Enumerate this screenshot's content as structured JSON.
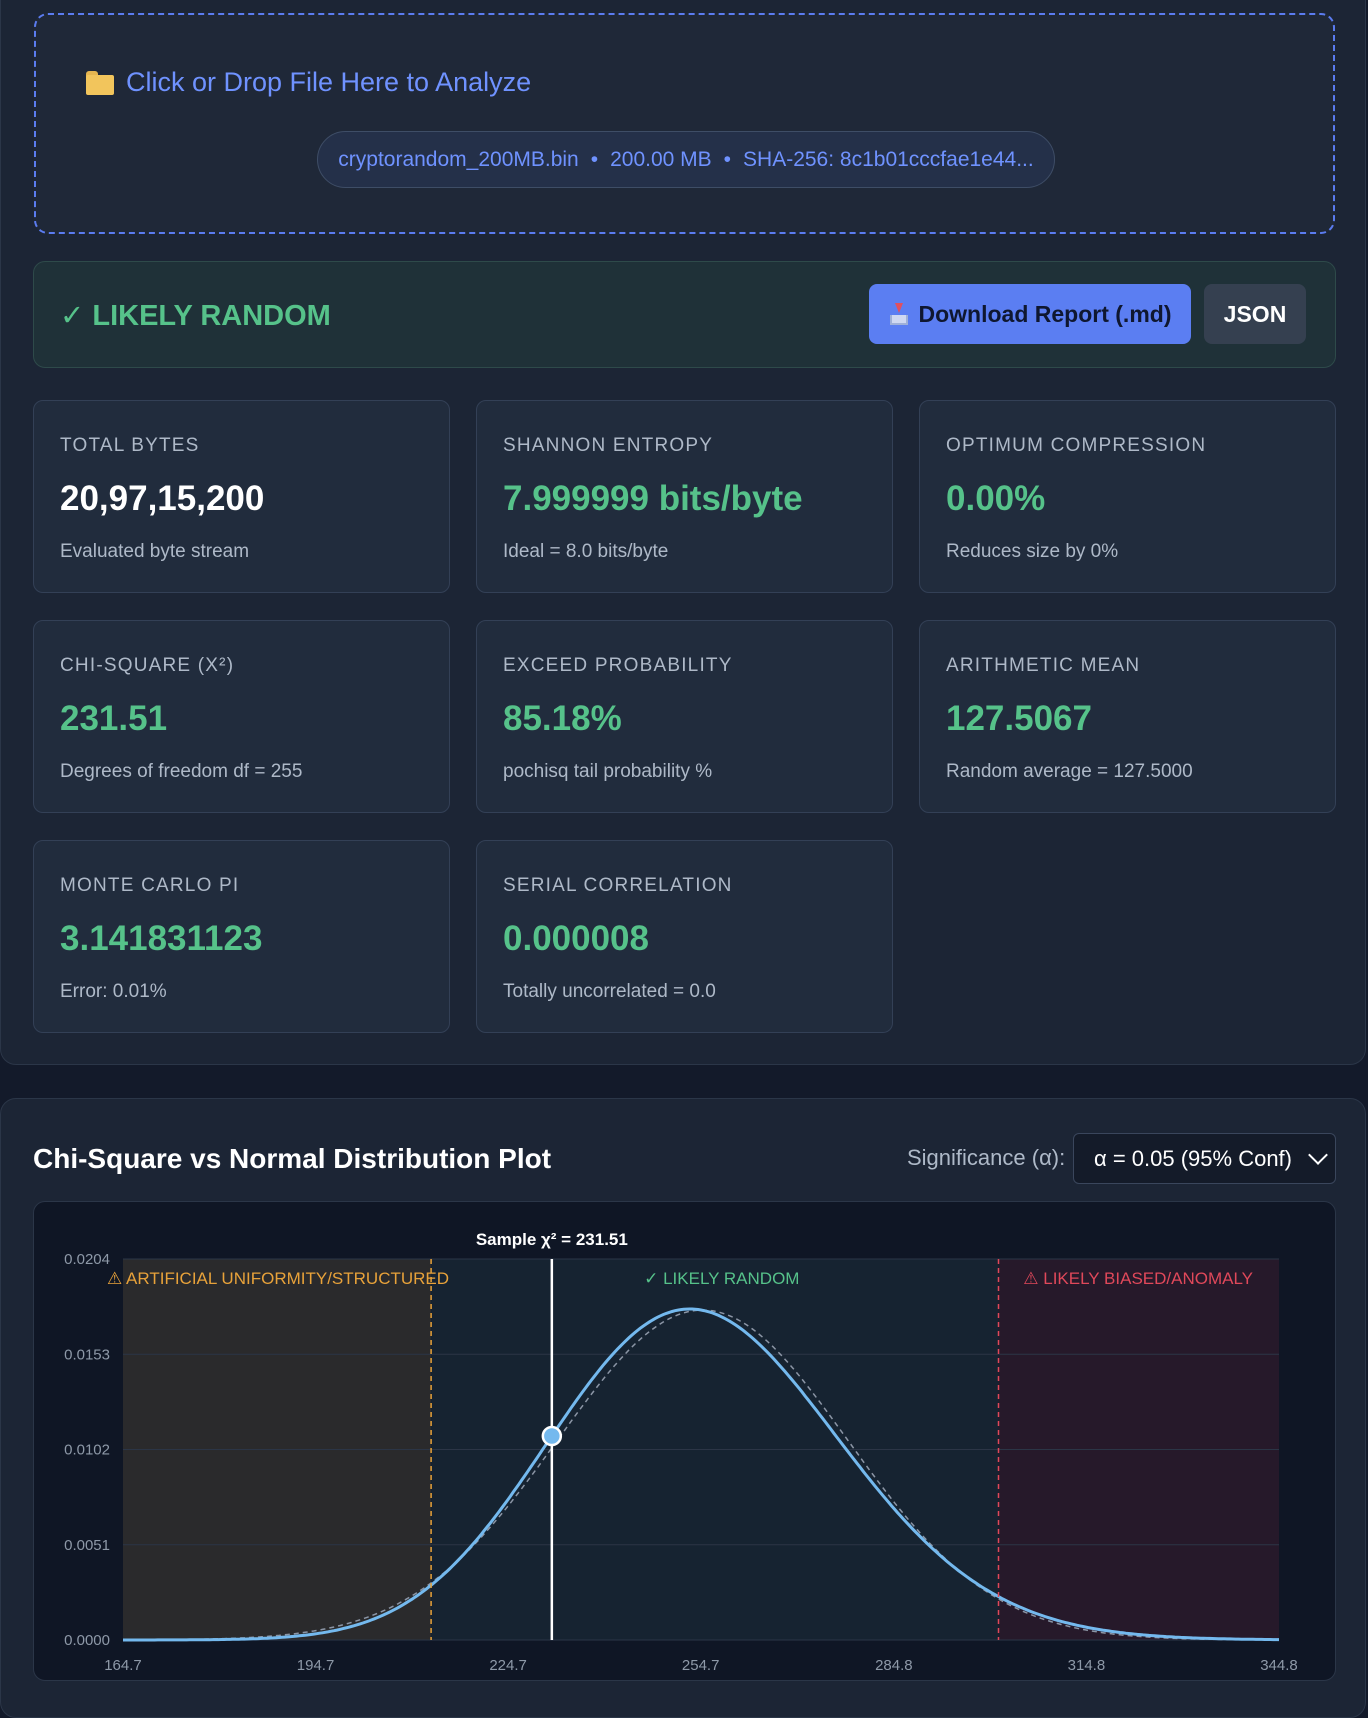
{
  "dropzone": {
    "title": "Click or Drop File Here to Analyze",
    "icon": "folder-icon",
    "file_name": "cryptorandom_200MB.bin",
    "file_size": "200.00 MB",
    "file_hash": "SHA-256: 8c1b01cccfae1e44..."
  },
  "status": {
    "verdict": "✓ LIKELY RANDOM",
    "download_label": "Download Report (.md)",
    "json_label": "JSON"
  },
  "cards": {
    "total_bytes": {
      "label": "TOTAL BYTES",
      "value": "20,97,15,200",
      "sub": "Evaluated byte stream"
    },
    "entropy": {
      "label": "SHANNON ENTROPY",
      "value": "7.999999 bits/byte",
      "sub": "Ideal = 8.0 bits/byte"
    },
    "compression": {
      "label": "OPTIMUM COMPRESSION",
      "value": "0.00%",
      "sub": "Reduces size by 0%"
    },
    "chi_square": {
      "label": "CHI-SQUARE (X²)",
      "value": "231.51",
      "sub": "Degrees of freedom df = 255"
    },
    "exceed": {
      "label": "EXCEED PROBABILITY",
      "value": "85.18%",
      "sub": "pochisq tail probability %"
    },
    "mean": {
      "label": "ARITHMETIC MEAN",
      "value": "127.5067",
      "sub": "Random average = 127.5000"
    },
    "monte_carlo": {
      "label": "MONTE CARLO PI",
      "value": "3.141831123",
      "sub": "Error: 0.01%"
    },
    "serial": {
      "label": "SERIAL CORRELATION",
      "value": "0.000008",
      "sub": "Totally uncorrelated = 0.0"
    }
  },
  "chart": {
    "title": "Chi-Square vs Normal Distribution Plot",
    "significance_label": "Significance (α):",
    "significance_value": "α = 0.05 (95% Conf)"
  },
  "chart_data": {
    "type": "line",
    "series": [],
    "x_ticks": [
      "164.7",
      "194.7",
      "224.7",
      "254.7",
      "284.8",
      "314.8",
      "344.8"
    ],
    "y_ticks": [
      "0.0000",
      "0.0051",
      "0.0102",
      "0.0153",
      "0.0204"
    ],
    "xlim": [
      164.7,
      344.8
    ],
    "ylim": [
      0,
      0.0204
    ],
    "df": 255,
    "sample_chi2": 231.51,
    "sample_label": "Sample χ² = 231.51",
    "lower_critical": 212.7,
    "upper_critical": 301.1,
    "regions": [
      {
        "label": "⚠ ARTIFICIAL UNIFORMITY/STRUCTURED",
        "color": "#e8a23a"
      },
      {
        "label": "✓ LIKELY RANDOM",
        "color": "#56c28a"
      },
      {
        "label": "⚠ LIKELY BIASED/ANOMALY",
        "color": "#e0485a"
      }
    ],
    "colors": {
      "curve": "#74b9ee",
      "normal": "#8b95a5"
    },
    "grid": true
  }
}
